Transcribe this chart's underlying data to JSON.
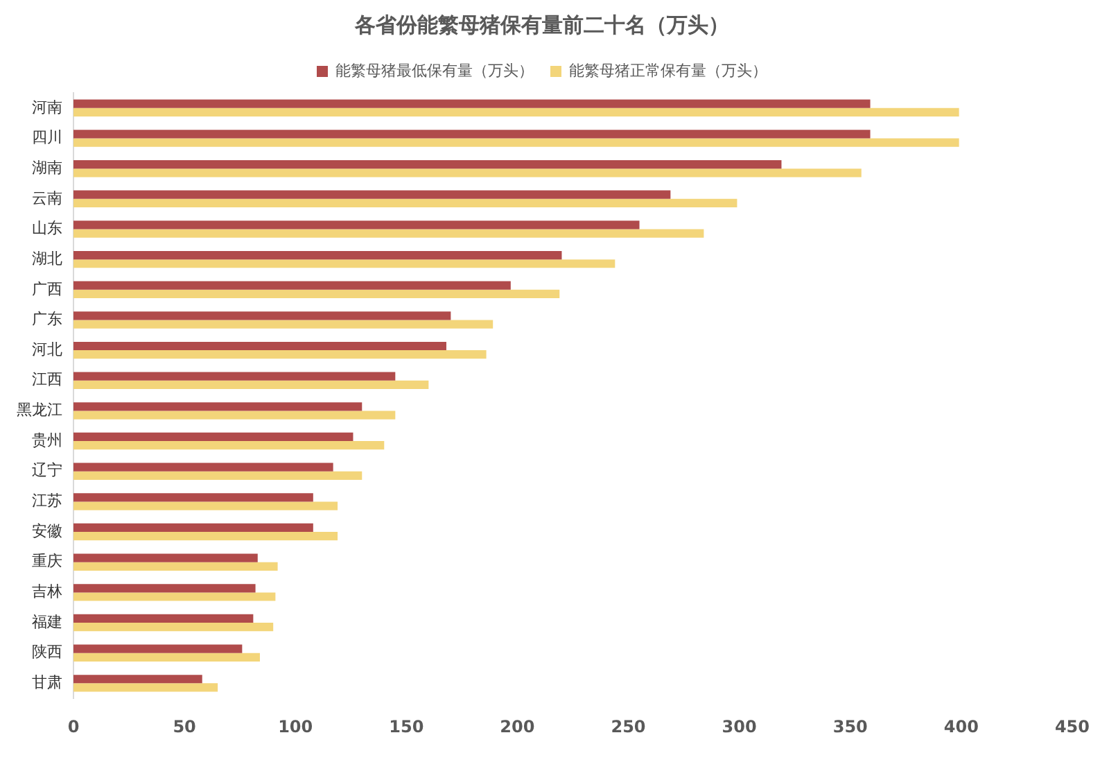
{
  "chart_data": {
    "type": "bar",
    "orientation": "horizontal",
    "title": "各省份能繁母猪保有量前二十名（万头）",
    "categories": [
      "河南",
      "四川",
      "湖南",
      "云南",
      "山东",
      "湖北",
      "广西",
      "广东",
      "河北",
      "江西",
      "黑龙江",
      "贵州",
      "辽宁",
      "江苏",
      "安徽",
      "重庆",
      "吉林",
      "福建",
      "陕西",
      "甘肃"
    ],
    "series": [
      {
        "name": "能繁母猪最低保有量（万头）",
        "color": "#b04b4b",
        "values": [
          359,
          359,
          319,
          269,
          255,
          220,
          197,
          170,
          168,
          145,
          130,
          126,
          117,
          108,
          108,
          83,
          82,
          81,
          76,
          58
        ]
      },
      {
        "name": "能繁母猪正常保有量（万头）",
        "color": "#f3d57a",
        "values": [
          399,
          399,
          355,
          299,
          284,
          244,
          219,
          189,
          186,
          160,
          145,
          140,
          130,
          119,
          119,
          92,
          91,
          90,
          84,
          65
        ]
      }
    ],
    "xlim": [
      0,
      450
    ],
    "xticks": [
      0,
      50,
      100,
      150,
      200,
      250,
      300,
      350,
      400,
      450
    ],
    "grid": false,
    "legend": "top"
  }
}
